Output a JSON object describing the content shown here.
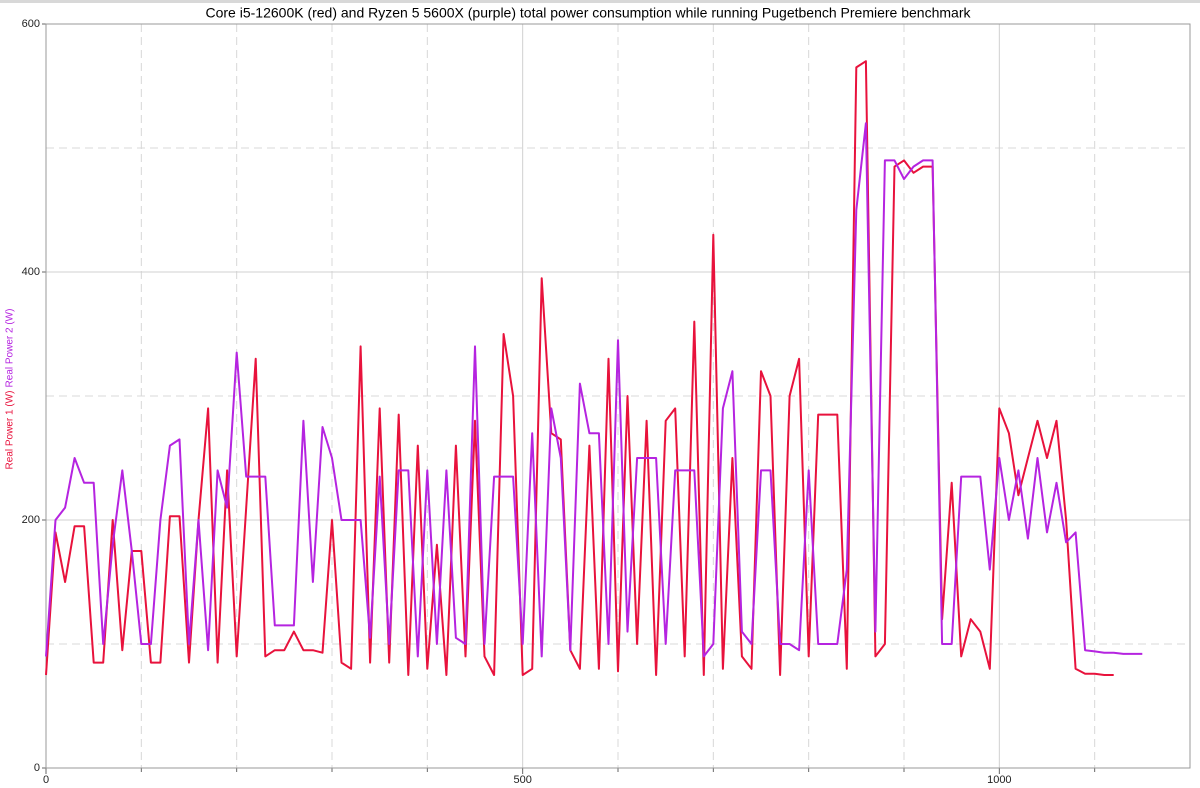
{
  "chart_data": {
    "type": "line",
    "title": "Core i5-12600K (red) and Ryzen 5 5600X (purple) total power consumption while running Pugetbench Premiere benchmark",
    "x": [
      0,
      10,
      20,
      30,
      40,
      50,
      60,
      70,
      80,
      90,
      100,
      110,
      120,
      130,
      140,
      150,
      160,
      170,
      180,
      190,
      200,
      210,
      220,
      230,
      240,
      250,
      260,
      270,
      280,
      290,
      300,
      310,
      320,
      330,
      340,
      350,
      360,
      370,
      380,
      390,
      400,
      410,
      420,
      430,
      440,
      450,
      460,
      470,
      480,
      490,
      500,
      510,
      520,
      530,
      540,
      550,
      560,
      570,
      580,
      590,
      600,
      610,
      620,
      630,
      640,
      650,
      660,
      670,
      680,
      690,
      700,
      710,
      720,
      730,
      740,
      750,
      760,
      770,
      780,
      790,
      800,
      810,
      820,
      830,
      840,
      850,
      860,
      870,
      880,
      890,
      900,
      910,
      920,
      930,
      940,
      950,
      960,
      970,
      980,
      990,
      1000,
      1010,
      1020,
      1030,
      1040,
      1050,
      1060,
      1070,
      1080,
      1090,
      1100,
      1110,
      1120,
      1130,
      1140,
      1150
    ],
    "series": [
      {
        "name": "Real Power 1 (W)",
        "color": "#e8123c",
        "values": [
          75,
          190,
          150,
          195,
          195,
          85,
          85,
          200,
          95,
          175,
          175,
          85,
          85,
          203,
          203,
          85,
          200,
          290,
          85,
          240,
          90,
          210,
          330,
          90,
          95,
          95,
          110,
          95,
          95,
          93,
          200,
          85,
          80,
          340,
          85,
          290,
          85,
          285,
          75,
          260,
          80,
          180,
          75,
          260,
          90,
          280,
          90,
          75,
          350,
          300,
          75,
          80,
          395,
          270,
          265,
          95,
          80,
          260,
          80,
          330,
          78,
          300,
          100,
          280,
          75,
          280,
          290,
          90,
          360,
          75,
          430,
          80,
          250,
          90,
          80,
          320,
          300,
          75,
          300,
          330,
          90,
          285,
          285,
          285,
          80,
          565,
          570,
          90,
          100,
          485,
          490,
          480,
          485,
          485,
          120,
          230,
          90,
          120,
          110,
          80,
          290,
          270,
          220,
          250,
          280,
          250,
          280,
          200,
          80,
          76,
          76,
          75,
          75,
          null,
          null,
          null
        ]
      },
      {
        "name": "Real Power 2 (W)",
        "color": "#b524e0",
        "values": [
          90,
          200,
          210,
          250,
          230,
          230,
          100,
          180,
          240,
          175,
          100,
          100,
          200,
          260,
          265,
          100,
          200,
          95,
          240,
          210,
          335,
          235,
          235,
          235,
          115,
          115,
          115,
          280,
          150,
          275,
          250,
          200,
          200,
          200,
          105,
          235,
          100,
          240,
          240,
          90,
          240,
          100,
          240,
          105,
          100,
          340,
          100,
          235,
          235,
          235,
          100,
          270,
          90,
          290,
          250,
          95,
          310,
          270,
          270,
          100,
          345,
          110,
          250,
          250,
          250,
          100,
          240,
          240,
          240,
          90,
          100,
          290,
          320,
          110,
          100,
          240,
          240,
          100,
          100,
          95,
          240,
          100,
          100,
          100,
          160,
          450,
          520,
          110,
          490,
          490,
          475,
          485,
          490,
          490,
          100,
          100,
          235,
          235,
          235,
          160,
          250,
          200,
          240,
          185,
          250,
          190,
          230,
          182,
          190,
          95,
          94,
          93,
          93,
          92,
          92,
          92
        ]
      }
    ],
    "xlim": [
      0,
      1200
    ],
    "xticks": [
      0,
      500,
      1000
    ],
    "x_minor_grid": [
      100,
      200,
      300,
      400,
      600,
      700,
      800,
      900,
      1100
    ],
    "ylim": [
      0,
      600
    ],
    "yticks": [
      0,
      200,
      400,
      600
    ],
    "y_minor_grid": [
      100,
      300,
      500
    ],
    "grid": true
  }
}
